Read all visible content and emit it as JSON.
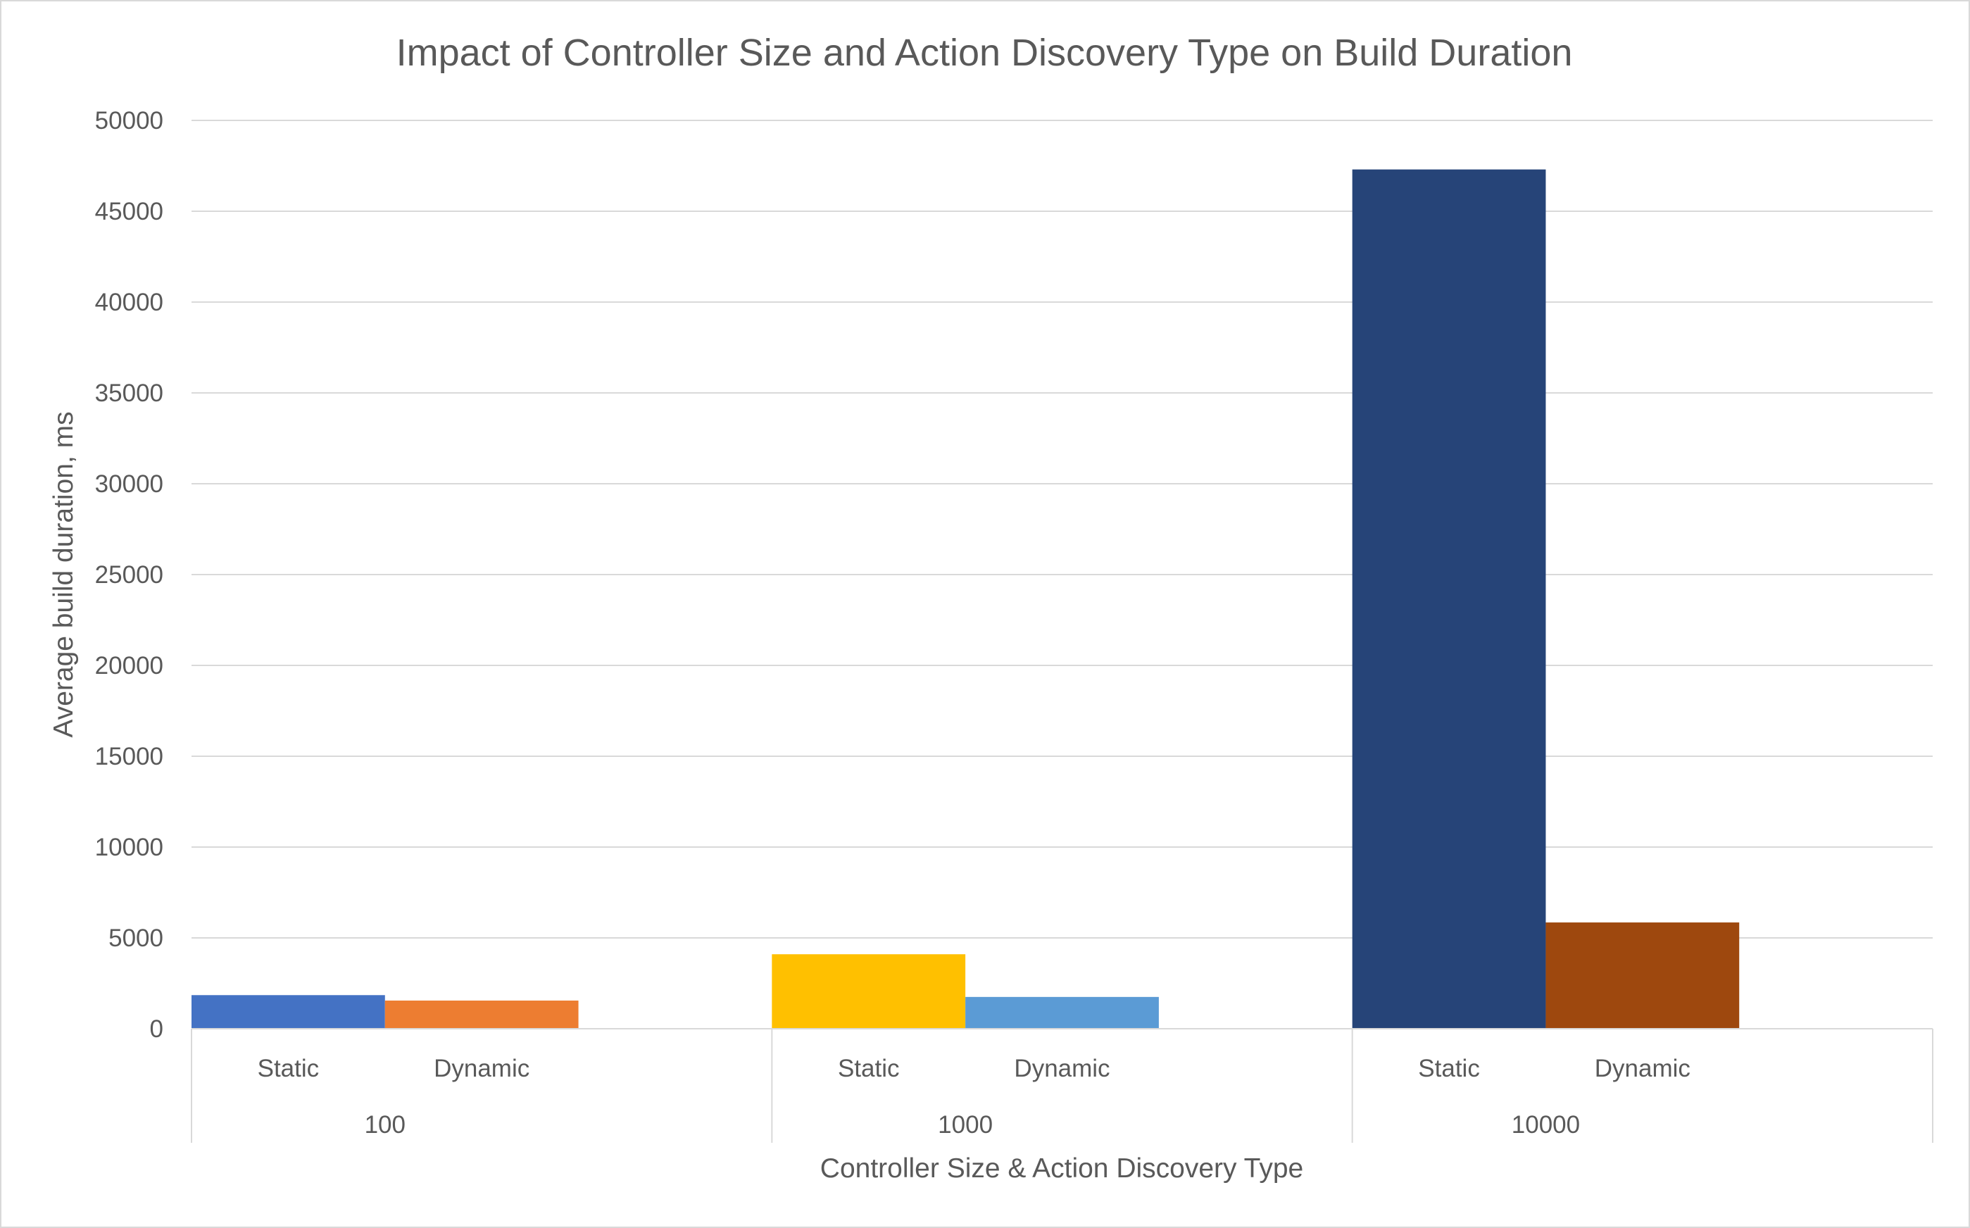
{
  "chart_data": {
    "type": "bar",
    "title": "Impact of Controller Size and Action Discovery Type on Build Duration",
    "xlabel": "Controller Size & Action Discovery Type",
    "ylabel": "Average build duration, ms",
    "ylim": [
      0,
      50000
    ],
    "y_ticks": [
      0,
      5000,
      10000,
      15000,
      20000,
      25000,
      30000,
      35000,
      40000,
      45000,
      50000
    ],
    "grid": true,
    "legend": "none",
    "groups": [
      {
        "label": "100",
        "bars": [
          {
            "label": "Static",
            "value": 1850,
            "color": "#4472C4"
          },
          {
            "label": "Dynamic",
            "value": 1550,
            "color": "#ED7D31"
          }
        ]
      },
      {
        "label": "1000",
        "bars": [
          {
            "label": "Static",
            "value": 4100,
            "color": "#FFC000"
          },
          {
            "label": "Dynamic",
            "value": 1750,
            "color": "#5B9BD5"
          }
        ]
      },
      {
        "label": "10000",
        "bars": [
          {
            "label": "Static",
            "value": 47300,
            "color": "#264478"
          },
          {
            "label": "Dynamic",
            "value": 5850,
            "color": "#9E480E"
          }
        ]
      }
    ]
  }
}
